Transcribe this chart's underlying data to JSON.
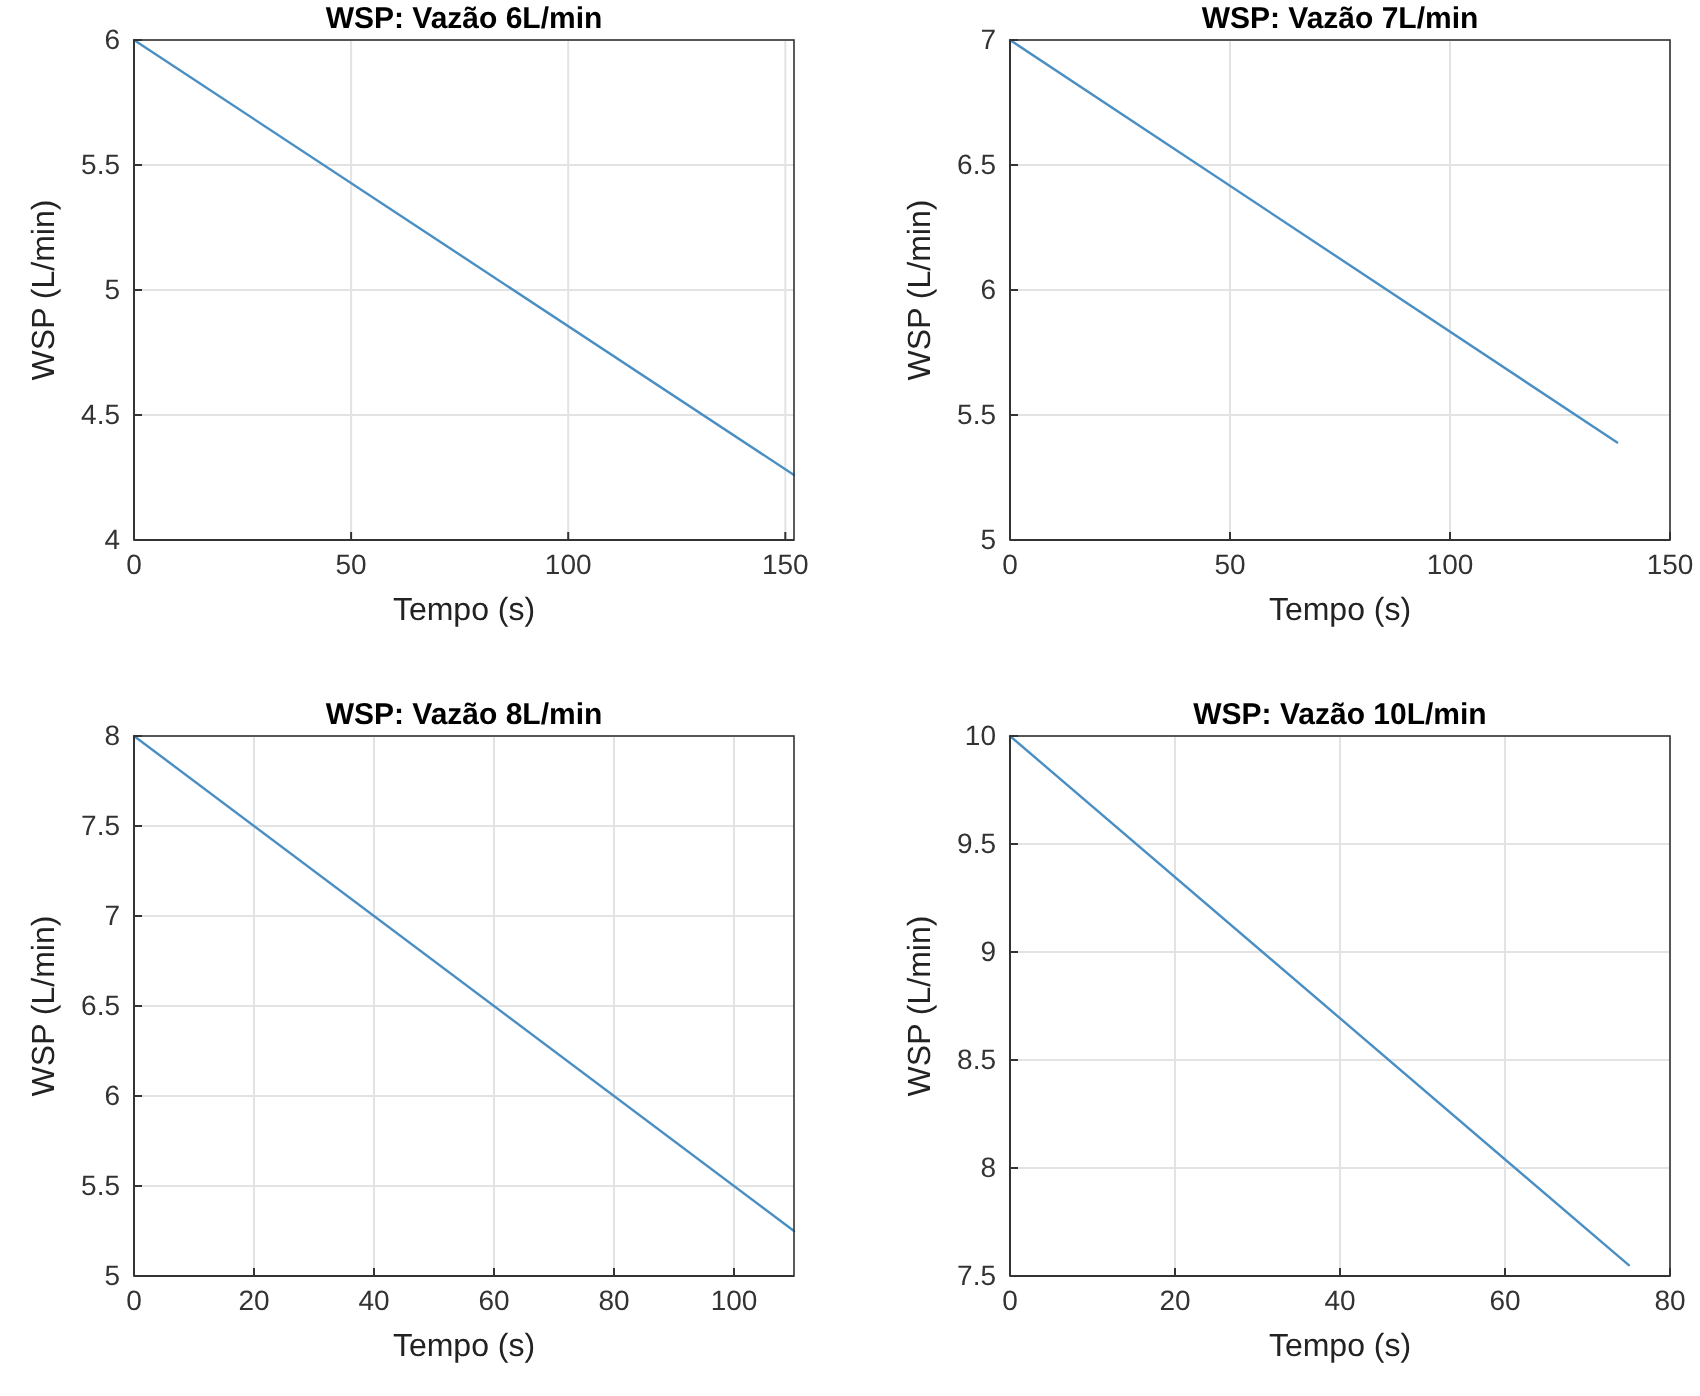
{
  "chart_data": [
    {
      "type": "line",
      "title": "WSP: Vazão 6L/min",
      "xlabel": "Tempo (s)",
      "ylabel": "WSP (L/min)",
      "xlim": [
        0,
        152
      ],
      "xticks": [
        0,
        50,
        100,
        150
      ],
      "ylim": [
        4,
        6
      ],
      "yticks": [
        4,
        4.5,
        5,
        5.5,
        6
      ],
      "grid": true,
      "series": [
        {
          "color": "#4a8fc4",
          "x": [
            0,
            152
          ],
          "values": [
            6,
            4.26
          ]
        }
      ]
    },
    {
      "type": "line",
      "title": "WSP: Vazão 7L/min",
      "xlabel": "Tempo (s)",
      "ylabel": "WSP (L/min)",
      "xlim": [
        0,
        150
      ],
      "xticks": [
        0,
        50,
        100,
        150
      ],
      "ylim": [
        5,
        7
      ],
      "yticks": [
        5,
        5.5,
        6,
        6.5,
        7
      ],
      "grid": true,
      "series": [
        {
          "color": "#4a8fc4",
          "x": [
            0,
            138
          ],
          "values": [
            7,
            5.39
          ]
        }
      ]
    },
    {
      "type": "line",
      "title": "WSP: Vazão 8L/min",
      "xlabel": "Tempo (s)",
      "ylabel": "WSP (L/min)",
      "xlim": [
        0,
        110
      ],
      "xticks": [
        0,
        20,
        40,
        60,
        80,
        100
      ],
      "ylim": [
        5,
        8
      ],
      "yticks": [
        5,
        5.5,
        6,
        6.5,
        7,
        7.5,
        8
      ],
      "grid": true,
      "series": [
        {
          "color": "#4a8fc4",
          "x": [
            0,
            110
          ],
          "values": [
            8,
            5.25
          ]
        }
      ]
    },
    {
      "type": "line",
      "title": "WSP: Vazão 10L/min",
      "xlabel": "Tempo (s)",
      "ylabel": "WSP (L/min)",
      "xlim": [
        0,
        80
      ],
      "xticks": [
        0,
        20,
        40,
        60,
        80
      ],
      "ylim": [
        7.5,
        10
      ],
      "yticks": [
        7.5,
        8,
        8.5,
        9,
        9.5,
        10
      ],
      "grid": true,
      "series": [
        {
          "color": "#4a8fc4",
          "x": [
            0,
            75
          ],
          "values": [
            10,
            7.55
          ]
        }
      ]
    }
  ]
}
